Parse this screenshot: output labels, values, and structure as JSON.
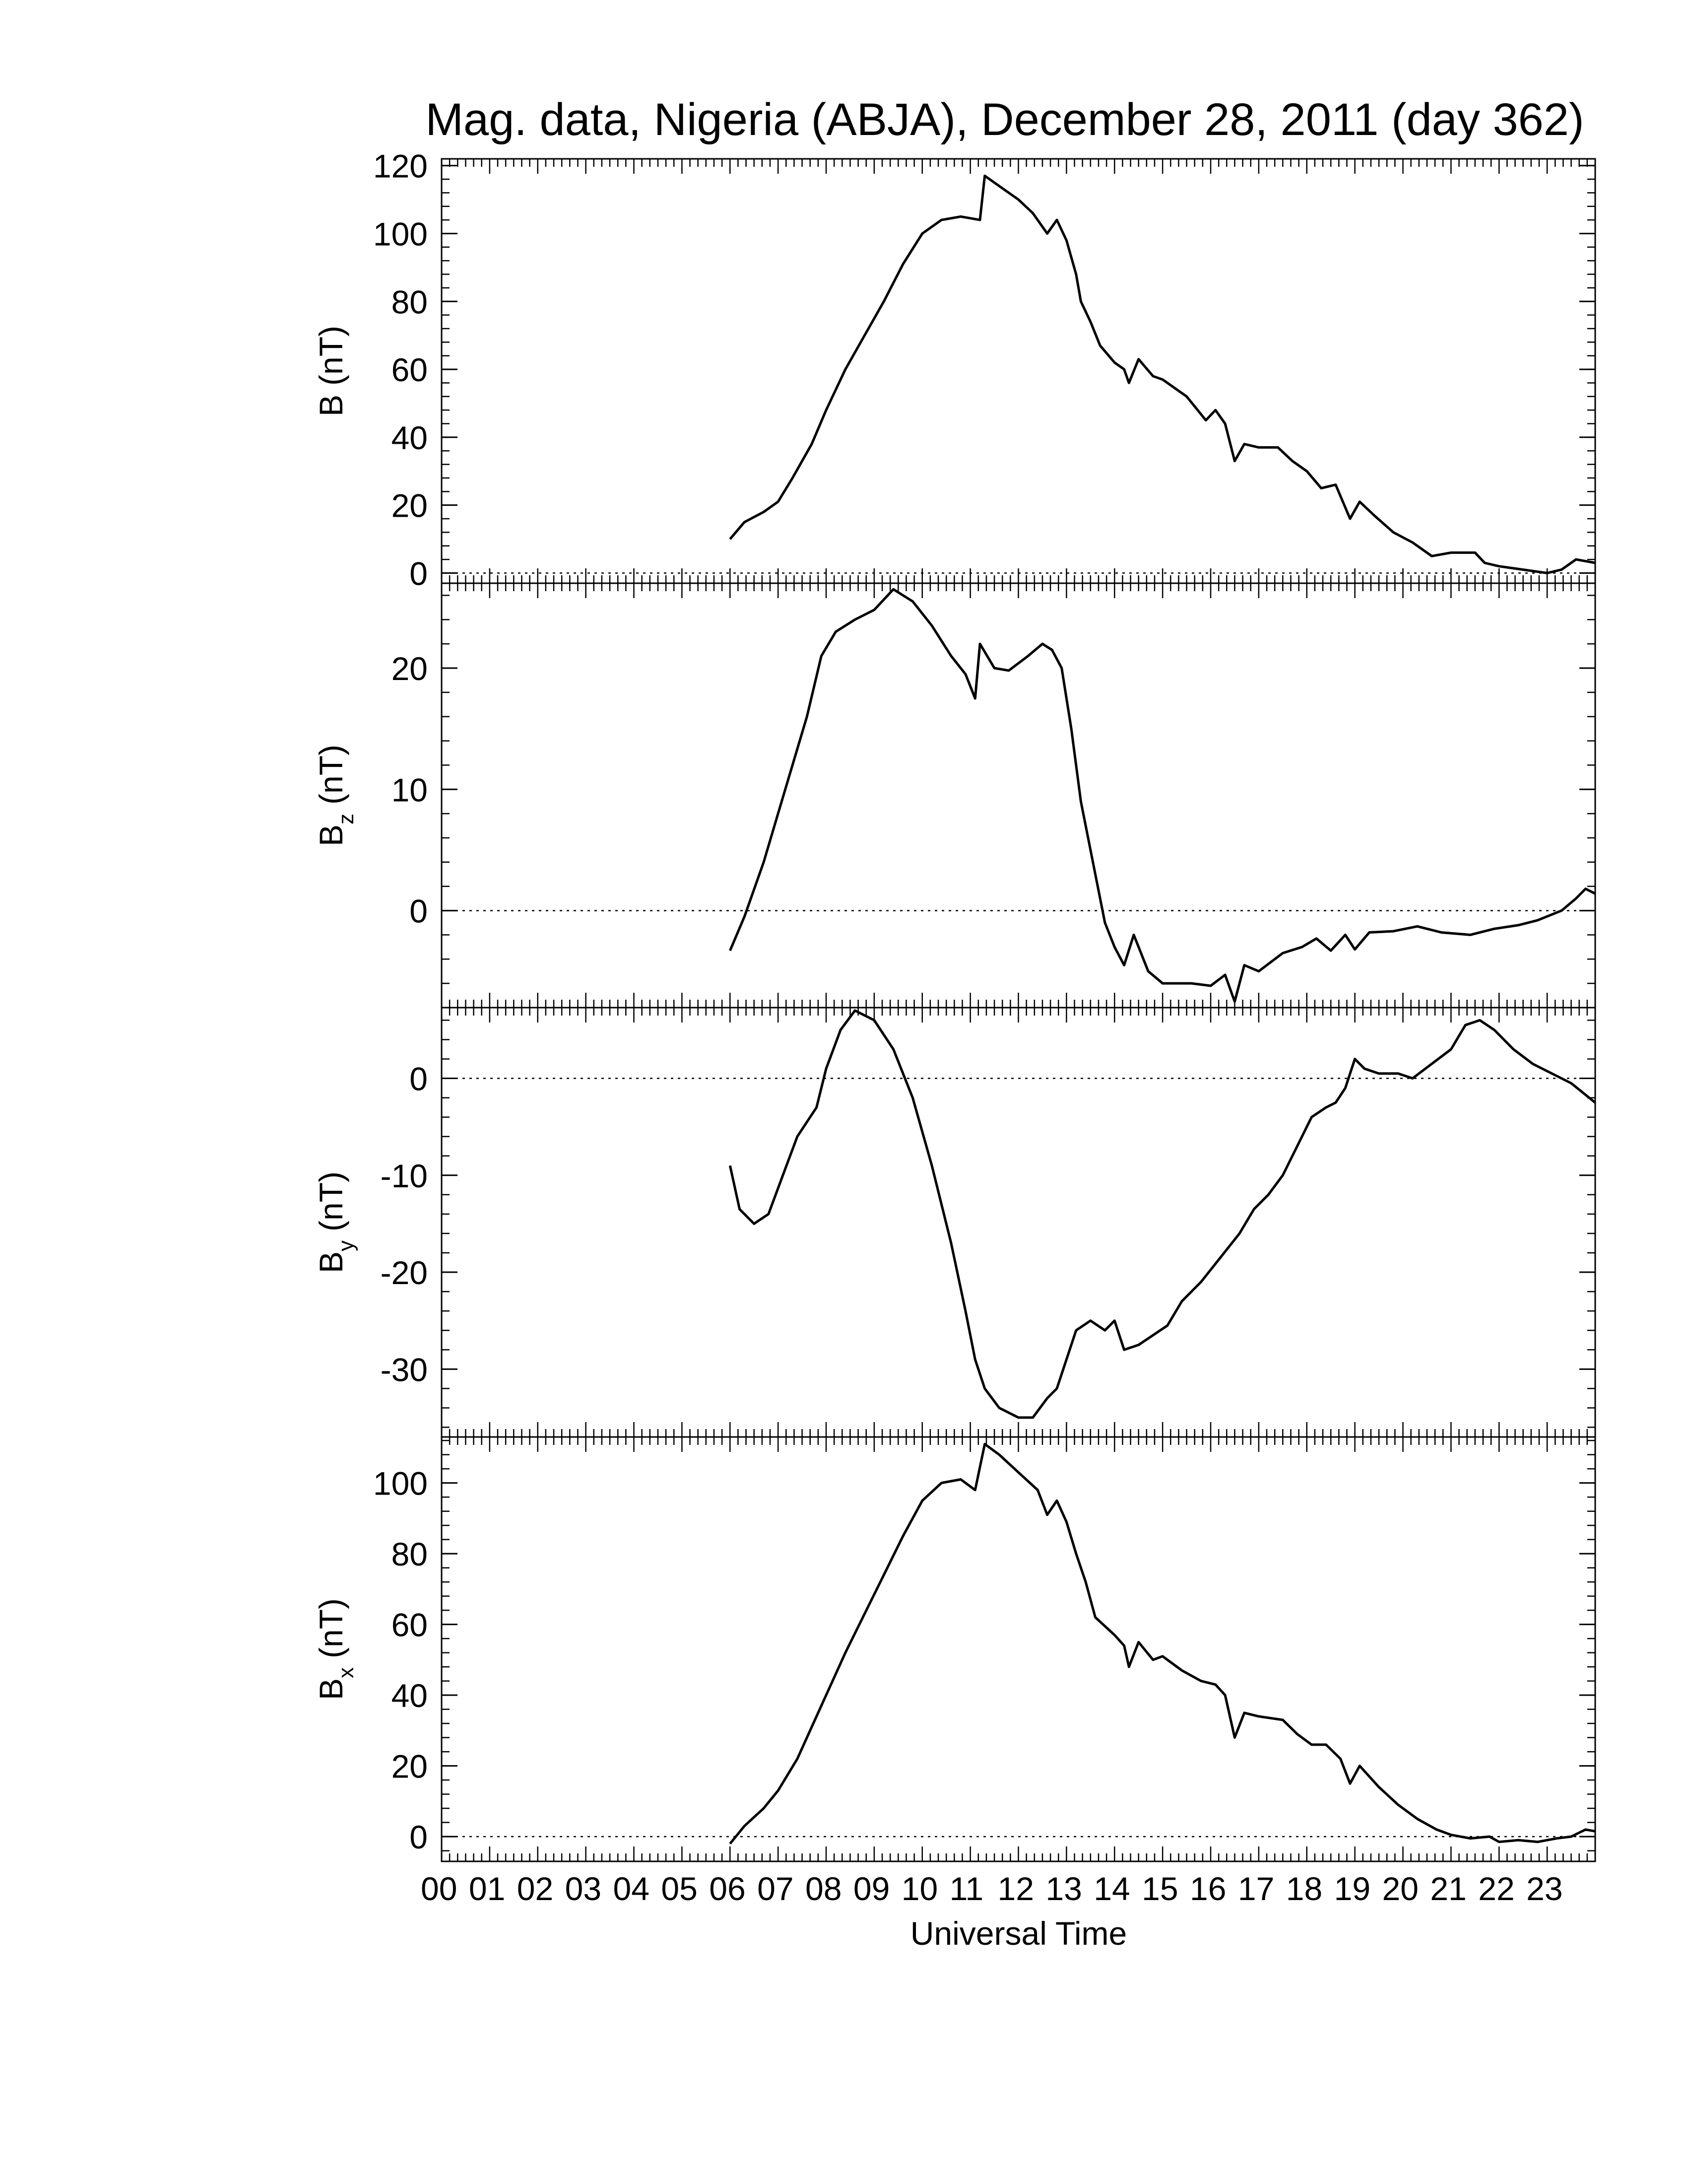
{
  "title": "Mag. data, Nigeria (ABJA), December 28, 2011 (day 362)",
  "x_axis": {
    "label": "Universal Time",
    "tick_labels": [
      "00",
      "01",
      "02",
      "03",
      "04",
      "05",
      "06",
      "07",
      "08",
      "09",
      "10",
      "11",
      "12",
      "13",
      "14",
      "15",
      "16",
      "17",
      "18",
      "19",
      "20",
      "21",
      "22",
      "23"
    ]
  },
  "chart_data": [
    {
      "type": "line",
      "panel": "B",
      "ylabel_main": "B",
      "ylabel_sub": "",
      "ylabel_unit": "(nT)",
      "ylim": [
        -3,
        122
      ],
      "yticks": [
        0,
        20,
        40,
        60,
        80,
        100,
        120
      ],
      "xlim": [
        0,
        24
      ],
      "zero_line": true,
      "series": [
        {
          "points": [
            [
              6.0,
              10
            ],
            [
              6.3,
              15
            ],
            [
              6.7,
              18
            ],
            [
              7.0,
              21
            ],
            [
              7.3,
              28
            ],
            [
              7.7,
              38
            ],
            [
              8.0,
              48
            ],
            [
              8.4,
              60
            ],
            [
              8.8,
              70
            ],
            [
              9.2,
              80
            ],
            [
              9.6,
              91
            ],
            [
              10.0,
              100
            ],
            [
              10.4,
              104
            ],
            [
              10.8,
              105
            ],
            [
              11.2,
              104
            ],
            [
              11.3,
              117
            ],
            [
              11.5,
              115
            ],
            [
              11.8,
              112
            ],
            [
              12.0,
              110
            ],
            [
              12.3,
              106
            ],
            [
              12.6,
              100
            ],
            [
              12.8,
              104
            ],
            [
              13.0,
              98
            ],
            [
              13.2,
              88
            ],
            [
              13.3,
              80
            ],
            [
              13.5,
              74
            ],
            [
              13.7,
              67
            ],
            [
              14.0,
              62
            ],
            [
              14.2,
              60
            ],
            [
              14.3,
              56
            ],
            [
              14.5,
              63
            ],
            [
              14.8,
              58
            ],
            [
              15.0,
              57
            ],
            [
              15.5,
              52
            ],
            [
              15.9,
              45
            ],
            [
              16.1,
              48
            ],
            [
              16.3,
              44
            ],
            [
              16.5,
              33
            ],
            [
              16.7,
              38
            ],
            [
              17.0,
              37
            ],
            [
              17.4,
              37
            ],
            [
              17.7,
              33
            ],
            [
              18.0,
              30
            ],
            [
              18.3,
              25
            ],
            [
              18.6,
              26
            ],
            [
              18.9,
              16
            ],
            [
              19.1,
              21
            ],
            [
              19.4,
              17
            ],
            [
              19.8,
              12
            ],
            [
              20.2,
              9
            ],
            [
              20.6,
              5
            ],
            [
              21.0,
              6
            ],
            [
              21.5,
              6
            ],
            [
              21.7,
              3
            ],
            [
              22.0,
              2
            ],
            [
              22.5,
              1
            ],
            [
              23.0,
              0
            ],
            [
              23.3,
              1
            ],
            [
              23.6,
              4
            ],
            [
              24.0,
              3
            ]
          ]
        }
      ]
    },
    {
      "type": "line",
      "panel": "Bz",
      "ylabel_main": "B",
      "ylabel_sub": "z",
      "ylabel_unit": "(nT)",
      "ylim": [
        -8,
        27
      ],
      "yticks": [
        0,
        10,
        20
      ],
      "xlim": [
        0,
        24
      ],
      "zero_line": true,
      "series": [
        {
          "points": [
            [
              6.0,
              -3.3
            ],
            [
              6.3,
              -0.5
            ],
            [
              6.7,
              4
            ],
            [
              7.0,
              8
            ],
            [
              7.3,
              12
            ],
            [
              7.6,
              16
            ],
            [
              7.9,
              21
            ],
            [
              8.2,
              23
            ],
            [
              8.6,
              24
            ],
            [
              9.0,
              24.8
            ],
            [
              9.4,
              26.5
            ],
            [
              9.8,
              25.5
            ],
            [
              10.2,
              23.5
            ],
            [
              10.6,
              21
            ],
            [
              10.9,
              19.5
            ],
            [
              11.1,
              17.5
            ],
            [
              11.2,
              22
            ],
            [
              11.5,
              20
            ],
            [
              11.8,
              19.8
            ],
            [
              12.2,
              21
            ],
            [
              12.5,
              22
            ],
            [
              12.7,
              21.5
            ],
            [
              12.9,
              20
            ],
            [
              13.1,
              15
            ],
            [
              13.3,
              9
            ],
            [
              13.6,
              3
            ],
            [
              13.8,
              -1
            ],
            [
              14.0,
              -3
            ],
            [
              14.2,
              -4.5
            ],
            [
              14.4,
              -2
            ],
            [
              14.7,
              -5
            ],
            [
              15.0,
              -6
            ],
            [
              15.3,
              -6
            ],
            [
              15.6,
              -6
            ],
            [
              16.0,
              -6.2
            ],
            [
              16.3,
              -5.3
            ],
            [
              16.5,
              -7.5
            ],
            [
              16.7,
              -4.5
            ],
            [
              17.0,
              -5
            ],
            [
              17.5,
              -3.5
            ],
            [
              17.9,
              -3
            ],
            [
              18.2,
              -2.3
            ],
            [
              18.5,
              -3.3
            ],
            [
              18.8,
              -2
            ],
            [
              19.0,
              -3.2
            ],
            [
              19.3,
              -1.8
            ],
            [
              19.8,
              -1.7
            ],
            [
              20.3,
              -1.3
            ],
            [
              20.8,
              -1.8
            ],
            [
              21.4,
              -2
            ],
            [
              21.9,
              -1.5
            ],
            [
              22.4,
              -1.2
            ],
            [
              22.8,
              -0.8
            ],
            [
              23.3,
              0
            ],
            [
              23.6,
              1
            ],
            [
              23.8,
              1.8
            ],
            [
              24.0,
              1.4
            ]
          ]
        }
      ]
    },
    {
      "type": "line",
      "panel": "By",
      "ylabel_main": "B",
      "ylabel_sub": "y",
      "ylabel_unit": "(nT)",
      "ylim": [
        -37,
        7.3
      ],
      "yticks": [
        -30,
        -20,
        -10,
        0
      ],
      "xlim": [
        0,
        24
      ],
      "zero_line": true,
      "series": [
        {
          "points": [
            [
              6.0,
              -9
            ],
            [
              6.2,
              -13.5
            ],
            [
              6.5,
              -15
            ],
            [
              6.8,
              -14
            ],
            [
              7.1,
              -10
            ],
            [
              7.4,
              -6
            ],
            [
              7.8,
              -3
            ],
            [
              8.0,
              1
            ],
            [
              8.3,
              5
            ],
            [
              8.6,
              7
            ],
            [
              9.0,
              6
            ],
            [
              9.4,
              3
            ],
            [
              9.8,
              -2
            ],
            [
              10.2,
              -9
            ],
            [
              10.6,
              -17
            ],
            [
              10.9,
              -24
            ],
            [
              11.1,
              -29
            ],
            [
              11.3,
              -32
            ],
            [
              11.6,
              -34
            ],
            [
              12.0,
              -35
            ],
            [
              12.3,
              -35
            ],
            [
              12.6,
              -33
            ],
            [
              12.8,
              -32
            ],
            [
              13.0,
              -29
            ],
            [
              13.2,
              -26
            ],
            [
              13.5,
              -25
            ],
            [
              13.8,
              -26
            ],
            [
              14.0,
              -25
            ],
            [
              14.2,
              -28
            ],
            [
              14.5,
              -27.5
            ],
            [
              14.8,
              -26.5
            ],
            [
              15.1,
              -25.5
            ],
            [
              15.4,
              -23
            ],
            [
              15.8,
              -21
            ],
            [
              16.2,
              -18.5
            ],
            [
              16.6,
              -16
            ],
            [
              16.9,
              -13.5
            ],
            [
              17.2,
              -12
            ],
            [
              17.5,
              -10
            ],
            [
              17.8,
              -7
            ],
            [
              18.1,
              -4
            ],
            [
              18.4,
              -3
            ],
            [
              18.6,
              -2.5
            ],
            [
              18.8,
              -1
            ],
            [
              19.0,
              2
            ],
            [
              19.2,
              1
            ],
            [
              19.5,
              0.5
            ],
            [
              19.9,
              0.5
            ],
            [
              20.2,
              0
            ],
            [
              20.6,
              1.5
            ],
            [
              21.0,
              3
            ],
            [
              21.3,
              5.5
            ],
            [
              21.6,
              6
            ],
            [
              21.9,
              5
            ],
            [
              22.3,
              3
            ],
            [
              22.7,
              1.5
            ],
            [
              23.1,
              0.5
            ],
            [
              23.5,
              -0.5
            ],
            [
              23.8,
              -1.7
            ],
            [
              24.0,
              -2.5
            ]
          ]
        }
      ]
    },
    {
      "type": "line",
      "panel": "Bx",
      "ylabel_main": "B",
      "ylabel_sub": "x",
      "ylabel_unit": "(nT)",
      "ylim": [
        -7,
        113
      ],
      "yticks": [
        0,
        20,
        40,
        60,
        80,
        100
      ],
      "xlim": [
        0,
        24
      ],
      "zero_line": true,
      "series": [
        {
          "points": [
            [
              6.0,
              -2
            ],
            [
              6.3,
              3
            ],
            [
              6.7,
              8
            ],
            [
              7.0,
              13
            ],
            [
              7.4,
              22
            ],
            [
              7.7,
              31
            ],
            [
              8.0,
              40
            ],
            [
              8.4,
              52
            ],
            [
              8.8,
              63
            ],
            [
              9.2,
              74
            ],
            [
              9.6,
              85
            ],
            [
              10.0,
              95
            ],
            [
              10.4,
              100
            ],
            [
              10.8,
              101
            ],
            [
              11.1,
              98
            ],
            [
              11.3,
              111
            ],
            [
              11.6,
              108
            ],
            [
              12.0,
              103
            ],
            [
              12.4,
              98
            ],
            [
              12.6,
              91
            ],
            [
              12.8,
              95
            ],
            [
              13.0,
              89
            ],
            [
              13.2,
              80
            ],
            [
              13.4,
              72
            ],
            [
              13.6,
              62
            ],
            [
              14.0,
              57
            ],
            [
              14.2,
              54
            ],
            [
              14.3,
              48
            ],
            [
              14.5,
              55
            ],
            [
              14.8,
              50
            ],
            [
              15.0,
              51
            ],
            [
              15.4,
              47
            ],
            [
              15.8,
              44
            ],
            [
              16.1,
              43
            ],
            [
              16.3,
              40
            ],
            [
              16.5,
              28
            ],
            [
              16.7,
              35
            ],
            [
              17.0,
              34
            ],
            [
              17.5,
              33
            ],
            [
              17.8,
              29
            ],
            [
              18.1,
              26
            ],
            [
              18.4,
              26
            ],
            [
              18.7,
              22
            ],
            [
              18.9,
              15
            ],
            [
              19.1,
              20
            ],
            [
              19.5,
              14
            ],
            [
              19.9,
              9
            ],
            [
              20.3,
              5
            ],
            [
              20.7,
              2
            ],
            [
              21.0,
              0.5
            ],
            [
              21.4,
              -0.5
            ],
            [
              21.8,
              0
            ],
            [
              22.0,
              -1.5
            ],
            [
              22.4,
              -1
            ],
            [
              22.8,
              -1.5
            ],
            [
              23.2,
              -0.5
            ],
            [
              23.5,
              0
            ],
            [
              23.8,
              2
            ],
            [
              24.0,
              1.5
            ]
          ]
        }
      ]
    }
  ]
}
